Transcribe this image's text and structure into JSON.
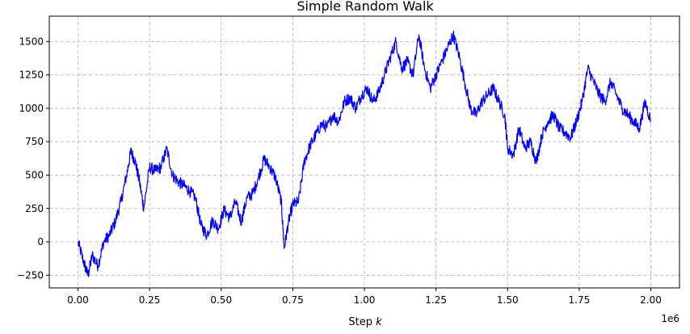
{
  "chart_data": {
    "type": "line",
    "title": "Simple Random Walk",
    "xlabel_prefix": "Step ",
    "xlabel_var": "k",
    "ylabel": "",
    "x_multiplier_label": "1e6",
    "xlim": [
      -0.1,
      2.1
    ],
    "ylim": [
      -345,
      1690
    ],
    "x_ticks": [
      0.0,
      0.25,
      0.5,
      0.75,
      1.0,
      1.25,
      1.5,
      1.75,
      2.0
    ],
    "x_tick_labels": [
      "0.00",
      "0.25",
      "0.50",
      "0.75",
      "1.00",
      "1.25",
      "1.50",
      "1.75",
      "2.00"
    ],
    "y_ticks": [
      -250,
      0,
      250,
      500,
      750,
      1000,
      1250,
      1500
    ],
    "y_tick_labels": [
      "−250",
      "0",
      "250",
      "500",
      "750",
      "1000",
      "1250",
      "1500"
    ],
    "grid": true,
    "line_color": "#0000ff",
    "grid_color": "#b0b0b0",
    "series": [
      {
        "x": [
          0.0,
          0.02,
          0.035,
          0.05,
          0.07,
          0.09,
          0.11,
          0.13,
          0.15,
          0.17,
          0.185,
          0.2,
          0.215,
          0.23,
          0.25,
          0.27,
          0.29,
          0.31,
          0.33,
          0.35,
          0.37,
          0.39,
          0.41,
          0.43,
          0.45,
          0.47,
          0.49,
          0.51,
          0.53,
          0.55,
          0.57,
          0.59,
          0.61,
          0.63,
          0.65,
          0.67,
          0.69,
          0.71,
          0.72,
          0.735,
          0.75,
          0.77,
          0.79,
          0.81,
          0.83,
          0.85,
          0.87,
          0.89,
          0.91,
          0.93,
          0.95,
          0.97,
          0.99,
          1.01,
          1.03,
          1.05,
          1.07,
          1.09,
          1.11,
          1.13,
          1.15,
          1.17,
          1.19,
          1.21,
          1.23,
          1.25,
          1.27,
          1.29,
          1.31,
          1.33,
          1.35,
          1.37,
          1.39,
          1.41,
          1.43,
          1.45,
          1.47,
          1.49,
          1.5,
          1.52,
          1.54,
          1.56,
          1.58,
          1.6,
          1.62,
          1.64,
          1.66,
          1.68,
          1.7,
          1.72,
          1.74,
          1.76,
          1.78,
          1.8,
          1.82,
          1.84,
          1.86,
          1.88,
          1.9,
          1.92,
          1.94,
          1.96,
          1.98,
          2.0
        ],
        "values": [
          0,
          -150,
          -250,
          -100,
          -180,
          0,
          50,
          150,
          300,
          500,
          680,
          600,
          450,
          250,
          560,
          530,
          560,
          700,
          500,
          450,
          420,
          380,
          330,
          120,
          50,
          160,
          100,
          240,
          180,
          300,
          150,
          330,
          360,
          480,
          620,
          560,
          480,
          300,
          -50,
          150,
          280,
          300,
          600,
          720,
          800,
          880,
          860,
          950,
          900,
          1050,
          1080,
          1000,
          1100,
          1150,
          1050,
          1120,
          1250,
          1380,
          1500,
          1300,
          1350,
          1250,
          1550,
          1300,
          1150,
          1250,
          1350,
          1450,
          1550,
          1400,
          1200,
          1000,
          950,
          1050,
          1100,
          1150,
          1050,
          950,
          700,
          650,
          850,
          700,
          750,
          600,
          800,
          900,
          950,
          850,
          820,
          780,
          900,
          1050,
          1300,
          1200,
          1100,
          1050,
          1200,
          1100,
          1000,
          950,
          900,
          850,
          1050,
          900
        ]
      }
    ]
  }
}
